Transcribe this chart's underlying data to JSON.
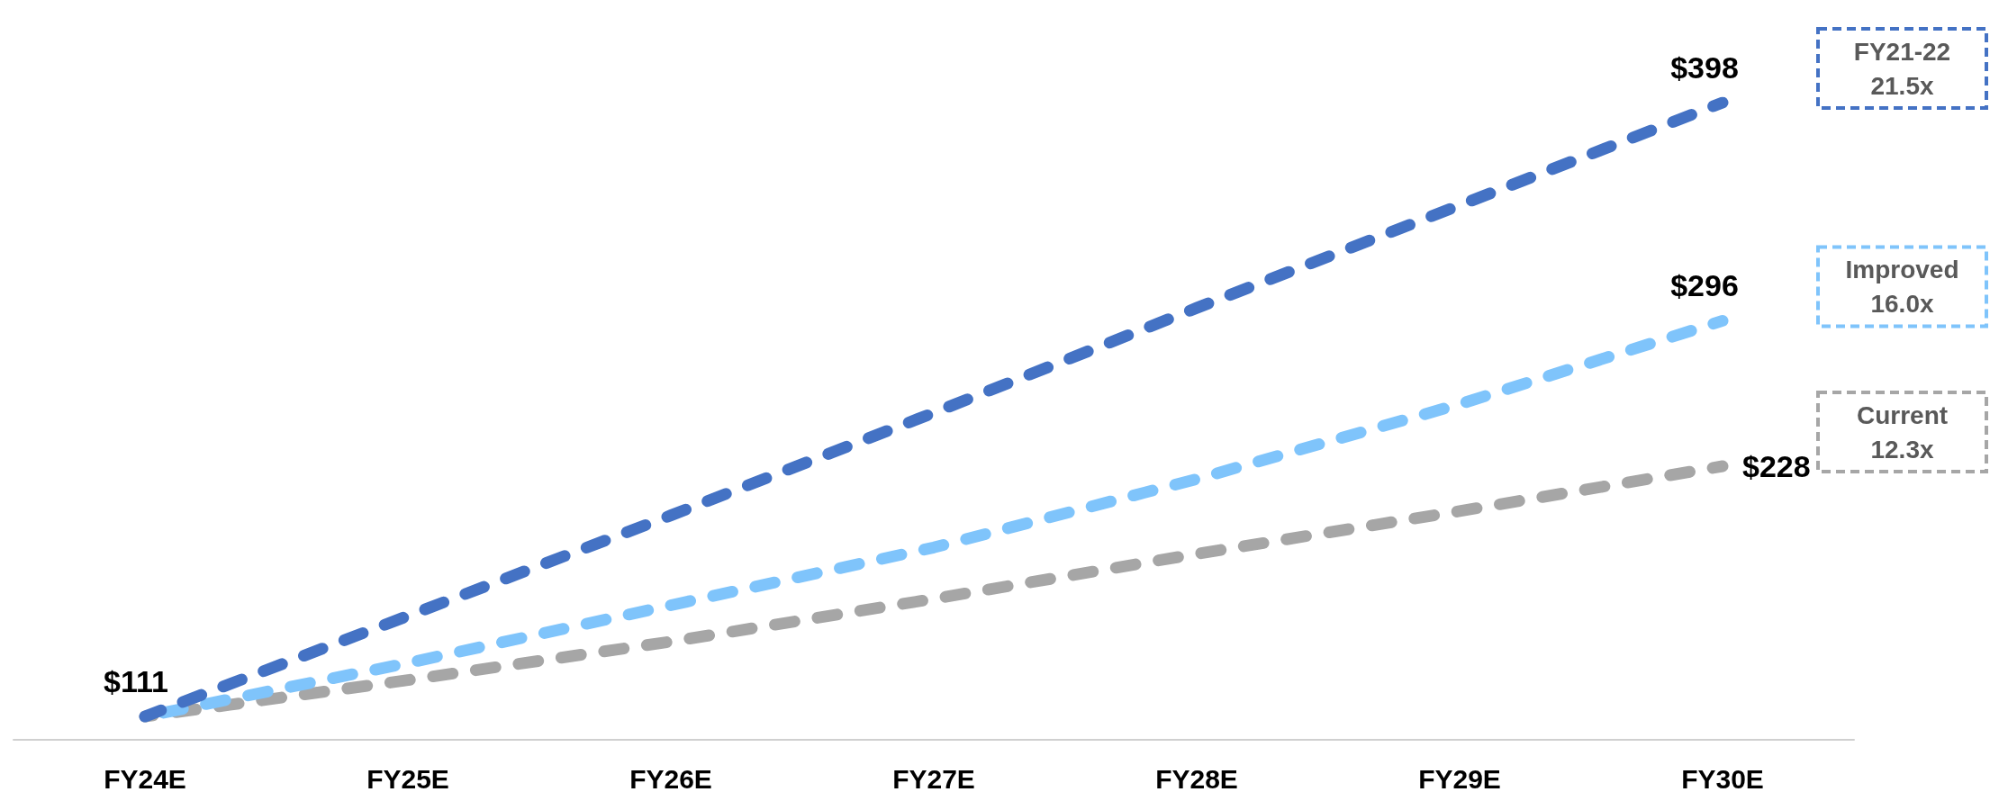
{
  "chart_data": {
    "type": "line",
    "categories": [
      "FY24E",
      "FY25E",
      "FY26E",
      "FY27E",
      "FY28E",
      "FY29E",
      "FY30E"
    ],
    "series": [
      {
        "name": "FY21-22 21.5x",
        "color": "#4472c4",
        "values": [
          111,
          158,
          205,
          253,
          302,
          350,
          398
        ],
        "value_labels": [
          "$111",
          null,
          null,
          null,
          null,
          null,
          "$398"
        ]
      },
      {
        "name": "Improved 16.0x",
        "color": "#7fc4fb",
        "values": [
          111,
          136,
          163,
          190,
          222,
          257,
          296
        ],
        "value_labels": [
          null,
          null,
          null,
          null,
          null,
          null,
          "$296"
        ]
      },
      {
        "name": "Current 12.3x",
        "color": "#a6a6a6",
        "values": [
          111,
          128,
          146,
          166,
          187,
          207,
          228
        ],
        "value_labels": [
          null,
          null,
          null,
          null,
          null,
          null,
          "$228"
        ]
      }
    ],
    "line_style": "dashed",
    "marker": "none",
    "grid": false,
    "legend": "right"
  }
}
